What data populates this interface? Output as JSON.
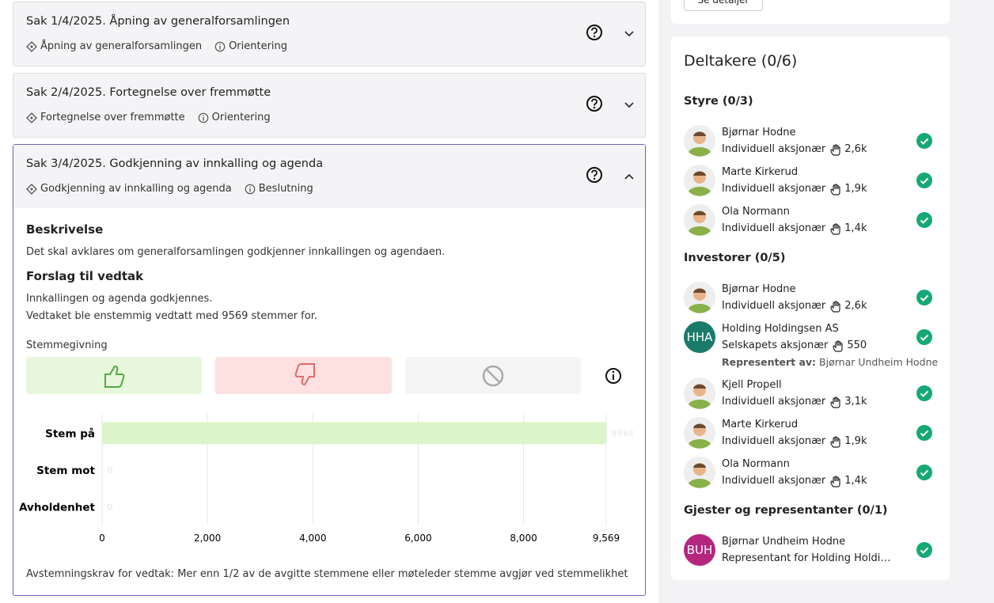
{
  "top_card": {
    "button": "Se detaljer"
  },
  "agenda": [
    {
      "title": "Sak 1/4/2025. Åpning av generalforsamlingen",
      "subject": "Åpning av generalforsamlingen",
      "kind": "Orientering"
    },
    {
      "title": "Sak 2/4/2025. Fortegnelse over fremmøtte",
      "subject": "Fortegnelse over fremmøtte",
      "kind": "Orientering"
    },
    {
      "title": "Sak 3/4/2025. Godkjenning av innkalling og agenda",
      "subject": "Godkjenning av innkalling og agenda",
      "kind": "Beslutning"
    }
  ],
  "details": {
    "description_heading": "Beskrivelse",
    "description": "Det skal avklares om generalforsamlingen godkjenner innkallingen og agendaen.",
    "proposal_heading": "Forslag til vedtak",
    "proposal_lines": [
      "Innkallingen og agenda godkjennes.",
      "Vedtaket ble enstemmig vedtatt med 9569 stemmer for."
    ],
    "voting_label": "Stemmegivning",
    "requirement": "Avstemningskrav for vedtak: Mer enn 1/2 av de avgitte stemmene eller møteleder stemme avgjør ved stemmelikhet"
  },
  "chart_data": {
    "type": "bar",
    "orientation": "horizontal",
    "categories": [
      "Stem på",
      "Stem mot",
      "Avholdenhet"
    ],
    "values": [
      9569,
      0,
      0
    ],
    "color": "#dcf5c8",
    "xlim": [
      0,
      9569
    ],
    "xticks": [
      0,
      {
        "value": 2000,
        "label": "2,000"
      },
      {
        "value": 4000,
        "label": "4,000"
      },
      {
        "value": 6000,
        "label": "6,000"
      },
      {
        "value": 8000,
        "label": "8,000"
      },
      {
        "value": 9569,
        "label": "9,569"
      }
    ],
    "grid": true
  },
  "participants": {
    "title": "Deltakere (0/6)",
    "groups": [
      {
        "title": "Styre (0/3)",
        "members": [
          {
            "name": "Bjørnar Hodne",
            "role": "Individuell aksjonær",
            "shares": "2,6k"
          },
          {
            "name": "Marte Kirkerud",
            "role": "Individuell aksjonær",
            "shares": "1,9k"
          },
          {
            "name": "Ola Normann",
            "role": "Individuell aksjonær",
            "shares": "1,4k"
          }
        ]
      },
      {
        "title": "Investorer (0/5)",
        "members": [
          {
            "name": "Bjørnar Hodne",
            "role": "Individuell aksjonær",
            "shares": "2,6k"
          },
          {
            "name": "Holding Holdingsen AS",
            "role": "Selskapets aksjonær",
            "shares": "550",
            "initials": "HHA",
            "avatar_color": "#1b7a6a",
            "represented_label": "Representert av:",
            "represented_by": "Bjørnar Undheim Hodne"
          },
          {
            "name": "Kjell Propell",
            "role": "Individuell aksjonær",
            "shares": "3,1k"
          },
          {
            "name": "Marte Kirkerud",
            "role": "Individuell aksjonær",
            "shares": "1,9k"
          },
          {
            "name": "Ola Normann",
            "role": "Individuell aksjonær",
            "shares": "1,4k"
          }
        ]
      },
      {
        "title": "Gjester og representanter (0/1)",
        "members": [
          {
            "name": "Bjørnar Undheim Hodne",
            "role": "Representant for Holding Holdi…",
            "initials": "BUH",
            "avatar_color": "#b5267f"
          }
        ]
      }
    ]
  }
}
